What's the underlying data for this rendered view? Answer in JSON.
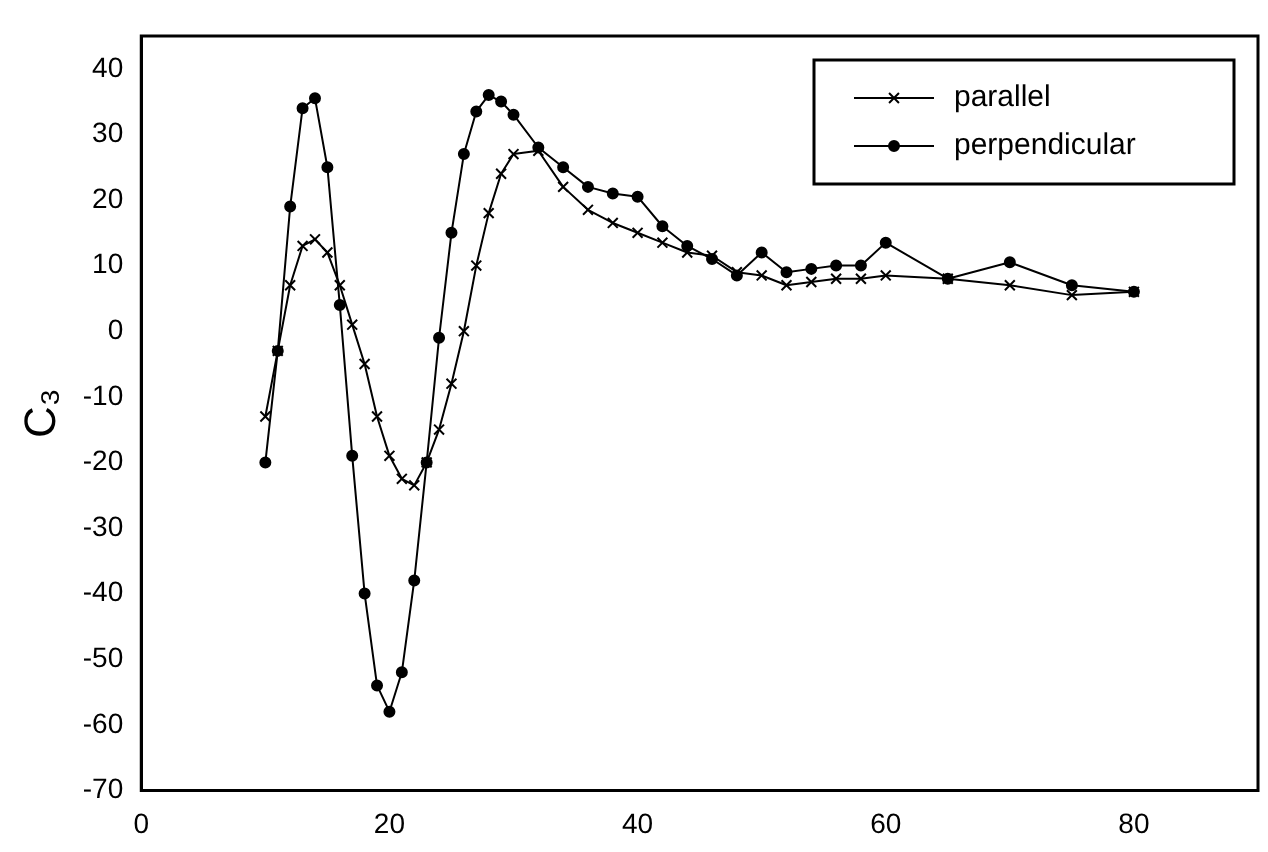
{
  "chart_data": {
    "type": "line",
    "ylabel": "C₃",
    "xlim": [
      0,
      90
    ],
    "xticks": [
      0,
      20,
      40,
      60,
      80
    ],
    "ylim": [
      -70,
      45
    ],
    "yticks": [
      -70,
      -60,
      -50,
      -40,
      -30,
      -20,
      -10,
      0,
      10,
      20,
      30,
      40
    ],
    "grid": false,
    "legend": "top right",
    "line_style": "solid",
    "series": [
      {
        "name": "parallel",
        "color": "#000000",
        "marker": "cross",
        "x": [
          10,
          11,
          12,
          13,
          14,
          15,
          16,
          17,
          18,
          19,
          20,
          21,
          22,
          23,
          24,
          25,
          26,
          27,
          28,
          29,
          30,
          32,
          34,
          36,
          38,
          40,
          42,
          44,
          46,
          48,
          50,
          52,
          54,
          56,
          58,
          60,
          65,
          70,
          75,
          80
        ],
        "values": [
          -13,
          -3,
          7,
          13,
          14,
          12,
          7,
          1,
          -5,
          -13,
          -19,
          -22.5,
          -23.5,
          -20,
          -15,
          -8,
          0,
          10,
          18,
          24,
          27,
          27.5,
          22,
          18.5,
          16.5,
          15,
          13.5,
          12,
          11.5,
          9,
          8.5,
          7,
          7.5,
          8,
          8,
          8.5,
          8,
          7,
          5.5,
          6
        ]
      },
      {
        "name": "perpendicular",
        "color": "#000000",
        "marker": "circle",
        "x": [
          10,
          11,
          12,
          13,
          14,
          15,
          16,
          17,
          18,
          19,
          20,
          21,
          22,
          23,
          24,
          25,
          26,
          27,
          28,
          29,
          30,
          32,
          34,
          36,
          38,
          40,
          42,
          44,
          46,
          48,
          50,
          52,
          54,
          56,
          58,
          60,
          65,
          70,
          75,
          80
        ],
        "values": [
          -20,
          -3,
          19,
          34,
          35.5,
          25,
          4,
          -19,
          -40,
          -54,
          -58,
          -52,
          -38,
          -20,
          -1,
          15,
          27,
          33.5,
          36,
          35,
          33,
          28,
          25,
          22,
          21,
          20.5,
          16,
          13,
          11,
          8.5,
          12,
          9,
          9.5,
          10,
          10,
          13.5,
          8,
          10.5,
          7,
          6
        ]
      }
    ]
  }
}
